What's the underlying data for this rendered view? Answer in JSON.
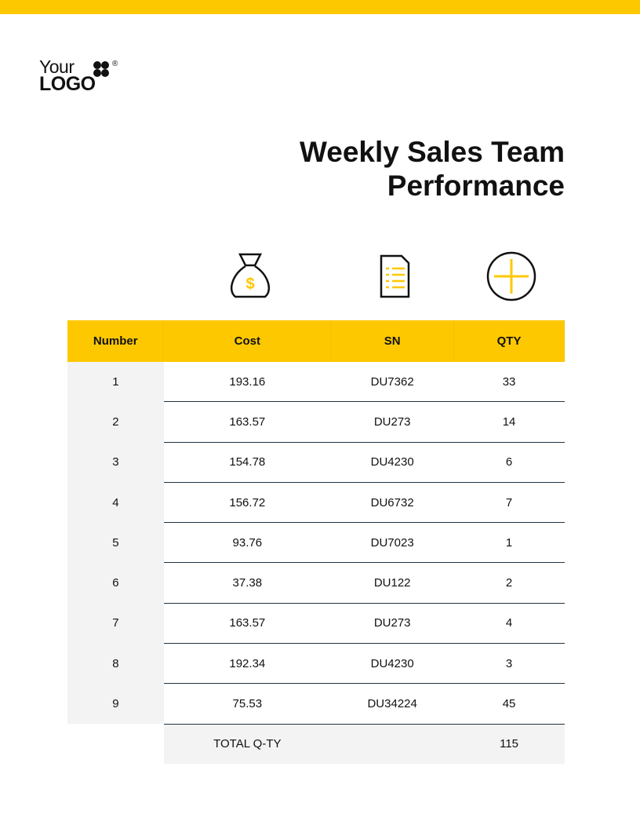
{
  "logo": {
    "line1": "Your",
    "line2": "LOGO",
    "mark": "®"
  },
  "title": "Weekly Sales Team Performance",
  "table": {
    "headers": [
      "Number",
      "Cost",
      "SN",
      "QTY"
    ],
    "rows": [
      [
        1,
        193.16,
        "DU7362",
        33
      ],
      [
        2,
        163.57,
        "DU273",
        14
      ],
      [
        3,
        154.78,
        "DU4230",
        6
      ],
      [
        4,
        156.72,
        "DU6732",
        7
      ],
      [
        5,
        93.76,
        "DU7023",
        1
      ],
      [
        6,
        37.38,
        "DU122",
        2
      ],
      [
        7,
        163.57,
        "DU273",
        4
      ],
      [
        8,
        192.34,
        "DU4230",
        3
      ],
      [
        9,
        75.53,
        "DU34224",
        45
      ]
    ],
    "total": {
      "label": "TOTAL Q-TY",
      "qty": 115
    }
  }
}
